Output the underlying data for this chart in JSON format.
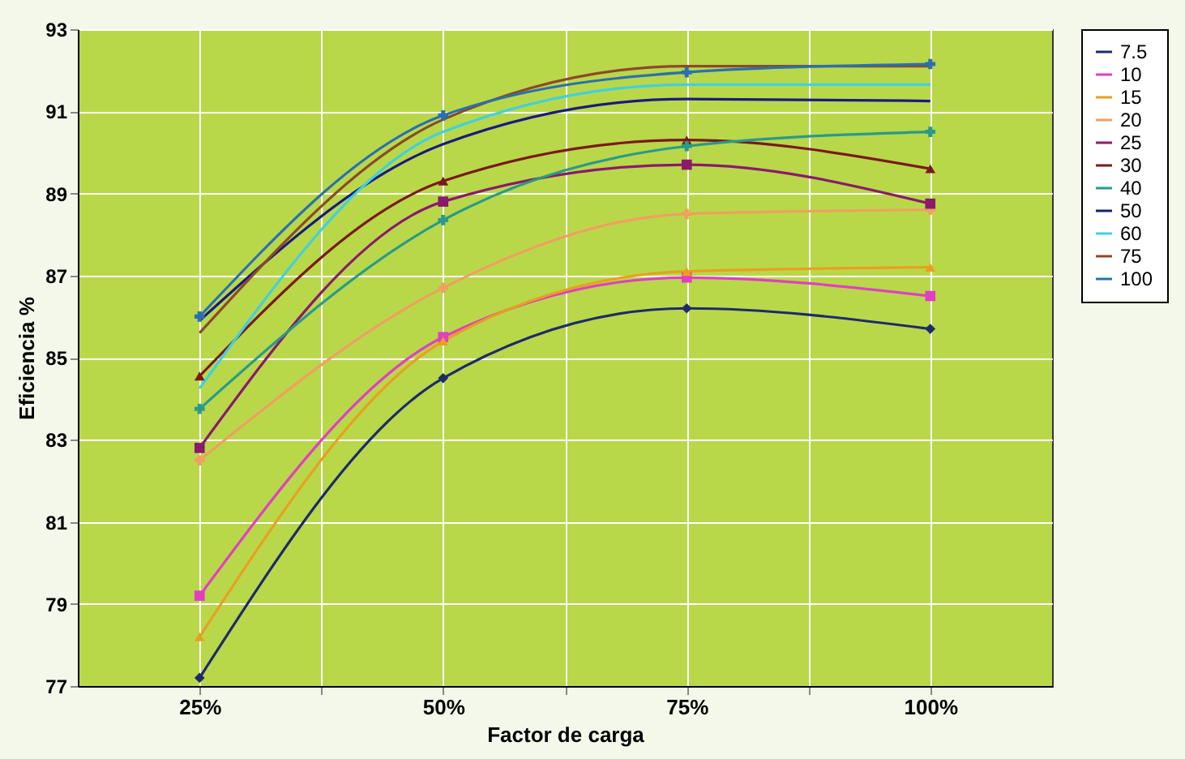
{
  "chart_data": {
    "type": "line",
    "xlabel": "Factor de carga",
    "ylabel": "Eficiencia %",
    "x": [
      25,
      50,
      75,
      100
    ],
    "xlim": [
      12.5,
      112.5
    ],
    "xticks": [
      {
        "value": 25,
        "label": "25%"
      },
      {
        "value": 37.5,
        "label": null
      },
      {
        "value": 50,
        "label": "50%"
      },
      {
        "value": 62.5,
        "label": null
      },
      {
        "value": 75,
        "label": "75%"
      },
      {
        "value": 87.5,
        "label": null
      },
      {
        "value": 100,
        "label": "100%"
      }
    ],
    "ylim": [
      77,
      93
    ],
    "yticks": [
      77,
      79,
      81,
      83,
      85,
      87,
      89,
      91,
      93
    ],
    "grid": true,
    "legend": "right",
    "line_style": "solid",
    "series": [
      {
        "name": "7.5",
        "color": "#1f2a6b",
        "marker": "diamond",
        "values": [
          77.2,
          84.5,
          86.2,
          85.7
        ]
      },
      {
        "name": "10",
        "color": "#e040c0",
        "marker": "square",
        "values": [
          79.2,
          85.5,
          86.95,
          86.5
        ]
      },
      {
        "name": "15",
        "color": "#e8a020",
        "marker": "triangle",
        "values": [
          78.2,
          85.4,
          87.1,
          87.2
        ]
      },
      {
        "name": "20",
        "color": "#f0a060",
        "marker": "cross",
        "values": [
          82.5,
          86.7,
          88.5,
          88.6
        ]
      },
      {
        "name": "25",
        "color": "#8b1a6b",
        "marker": "square",
        "values": [
          82.8,
          88.8,
          89.7,
          88.75
        ]
      },
      {
        "name": "30",
        "color": "#7a1a1a",
        "marker": "triangle",
        "values": [
          84.55,
          89.3,
          90.3,
          89.6
        ]
      },
      {
        "name": "40",
        "color": "#2a9a8a",
        "marker": "cross",
        "values": [
          83.75,
          88.35,
          90.15,
          90.5
        ]
      },
      {
        "name": "50",
        "color": "#1a1a80",
        "marker": "none",
        "values": [
          85.9,
          90.2,
          91.3,
          91.25
        ]
      },
      {
        "name": "60",
        "color": "#40d0e0",
        "marker": "none",
        "values": [
          84.25,
          90.5,
          91.65,
          91.65
        ]
      },
      {
        "name": "75",
        "color": "#8b4a2a",
        "marker": "none",
        "values": [
          85.6,
          90.8,
          92.1,
          92.1
        ]
      },
      {
        "name": "100",
        "color": "#2a70b0",
        "marker": "cross",
        "values": [
          86.0,
          90.9,
          91.95,
          92.15
        ]
      }
    ]
  }
}
